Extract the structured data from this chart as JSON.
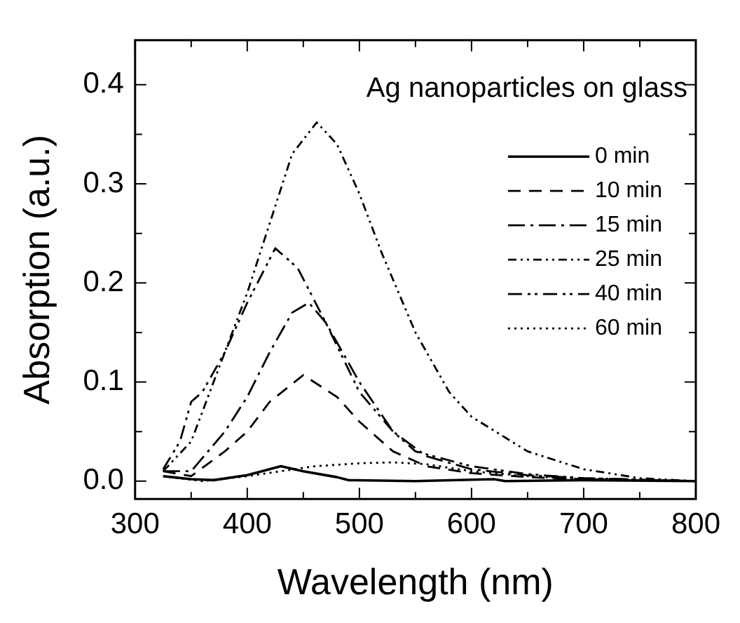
{
  "chart_data": {
    "type": "line",
    "title": "Ag nanoparticles on glass",
    "xlabel": "Wavelength (nm)",
    "ylabel": "Absorption (a.u.)",
    "xlim": [
      300,
      800
    ],
    "xticks": [
      300,
      400,
      500,
      600,
      700,
      800
    ],
    "ylim": [
      -0.018,
      0.445
    ],
    "yticks": [
      {
        "value": 0,
        "label": "0.0"
      },
      {
        "value": 0.1,
        "label": "0.1"
      },
      {
        "value": 0.2,
        "label": "0.2"
      },
      {
        "value": 0.3,
        "label": "0.3"
      },
      {
        "value": 0.4,
        "label": "0.4"
      }
    ],
    "grid": false,
    "legend": "top right",
    "marker": "none",
    "series": [
      {
        "name": "0 min",
        "color": "#000000",
        "line_style": "solid",
        "x": [
          325,
          350,
          370,
          400,
          430,
          450,
          480,
          490,
          550,
          620,
          630,
          700,
          800
        ],
        "values": [
          0.005,
          0.002,
          0.001,
          0.006,
          0.015,
          0.01,
          0.004,
          0.001,
          0.0,
          0.002,
          0.0,
          0.001,
          0.0
        ]
      },
      {
        "name": "10 min",
        "color": "#000000",
        "line_style": "dashed",
        "x": [
          325,
          350,
          380,
          400,
          420,
          450,
          480,
          500,
          530,
          560,
          600,
          650,
          700,
          800
        ],
        "values": [
          0.01,
          0.005,
          0.03,
          0.05,
          0.08,
          0.107,
          0.085,
          0.06,
          0.03,
          0.015,
          0.008,
          0.004,
          0.002,
          0.0
        ]
      },
      {
        "name": "15 min",
        "color": "#000000",
        "line_style": "dashed",
        "x": [
          325,
          350,
          380,
          400,
          420,
          440,
          455,
          470,
          500,
          530,
          560,
          600,
          650,
          700,
          800
        ],
        "values": [
          0.01,
          0.01,
          0.05,
          0.085,
          0.13,
          0.17,
          0.18,
          0.16,
          0.1,
          0.05,
          0.025,
          0.012,
          0.006,
          0.003,
          0.0
        ]
      },
      {
        "name": "25 min",
        "color": "#000000",
        "line_style": "dashed",
        "x": [
          325,
          350,
          380,
          400,
          420,
          440,
          462,
          480,
          500,
          520,
          550,
          580,
          600,
          650,
          700,
          750,
          800
        ],
        "values": [
          0.01,
          0.04,
          0.13,
          0.19,
          0.26,
          0.33,
          0.362,
          0.34,
          0.29,
          0.23,
          0.15,
          0.09,
          0.065,
          0.03,
          0.012,
          0.003,
          0.0
        ]
      },
      {
        "name": "40 min",
        "color": "#000000",
        "line_style": "dashed",
        "x": [
          325,
          340,
          350,
          360,
          380,
          400,
          425,
          445,
          470,
          500,
          530,
          550,
          600,
          650,
          700,
          800
        ],
        "values": [
          0.012,
          0.04,
          0.08,
          0.09,
          0.13,
          0.18,
          0.235,
          0.215,
          0.16,
          0.09,
          0.05,
          0.03,
          0.015,
          0.007,
          0.003,
          0.0
        ]
      },
      {
        "name": "60 min",
        "color": "#000000",
        "line_style": "dotted",
        "x": [
          325,
          360,
          400,
          430,
          460,
          500,
          530,
          560,
          600,
          650,
          700,
          800
        ],
        "values": [
          0.005,
          0.0,
          0.005,
          0.01,
          0.015,
          0.018,
          0.019,
          0.017,
          0.01,
          0.005,
          0.002,
          0.0
        ]
      }
    ]
  }
}
